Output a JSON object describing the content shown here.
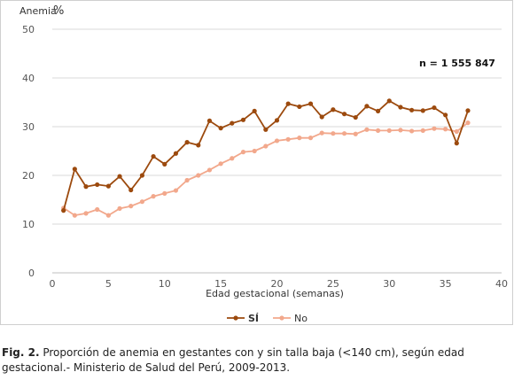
{
  "chart_data": {
    "type": "line",
    "ylabel_prefix": "Anemia",
    "ylabel_unit": "%",
    "xlabel": "Edad gestacional (semanas)",
    "annotation": "n = 1 555 847",
    "xlim": [
      0,
      40
    ],
    "ylim": [
      0,
      50
    ],
    "xticks": [
      0,
      5,
      10,
      15,
      20,
      25,
      30,
      35,
      40
    ],
    "yticks": [
      0,
      10,
      20,
      30,
      40,
      50
    ],
    "grid": true,
    "legend_position": "bottom",
    "x": [
      1,
      2,
      3,
      4,
      5,
      6,
      7,
      8,
      9,
      10,
      11,
      12,
      13,
      14,
      15,
      16,
      17,
      18,
      19,
      20,
      21,
      22,
      23,
      24,
      25,
      26,
      27,
      28,
      29,
      30,
      31,
      32,
      33,
      34,
      35,
      36,
      37
    ],
    "series": [
      {
        "name": "SÍ",
        "color": "#9c4a0e",
        "values": [
          12.8,
          21.3,
          17.7,
          18.1,
          17.8,
          19.8,
          17.0,
          20.0,
          23.9,
          22.3,
          24.5,
          26.8,
          26.2,
          31.2,
          29.7,
          30.7,
          31.4,
          33.2,
          29.4,
          31.3,
          34.7,
          34.1,
          34.7,
          32.0,
          33.5,
          32.6,
          31.9,
          34.2,
          33.2,
          35.3,
          34.0,
          33.4,
          33.3,
          33.9,
          32.4,
          26.6,
          33.3
        ]
      },
      {
        "name": "No",
        "color": "#f2a88c",
        "values": [
          13.3,
          11.8,
          12.2,
          13.0,
          11.8,
          13.2,
          13.7,
          14.6,
          15.7,
          16.3,
          16.9,
          19.0,
          20.0,
          21.1,
          22.4,
          23.5,
          24.8,
          25.0,
          26.0,
          27.1,
          27.4,
          27.7,
          27.7,
          28.7,
          28.6,
          28.6,
          28.5,
          29.4,
          29.2,
          29.2,
          29.3,
          29.1,
          29.2,
          29.6,
          29.5,
          29.0,
          30.8
        ]
      }
    ]
  },
  "caption": {
    "label": "Fig. 2.",
    "text": " Proporción de anemia en gestantes con y sin talla baja (<140 cm), según edad gestacional.- Ministerio de Salud del Perú, 2009-2013."
  }
}
